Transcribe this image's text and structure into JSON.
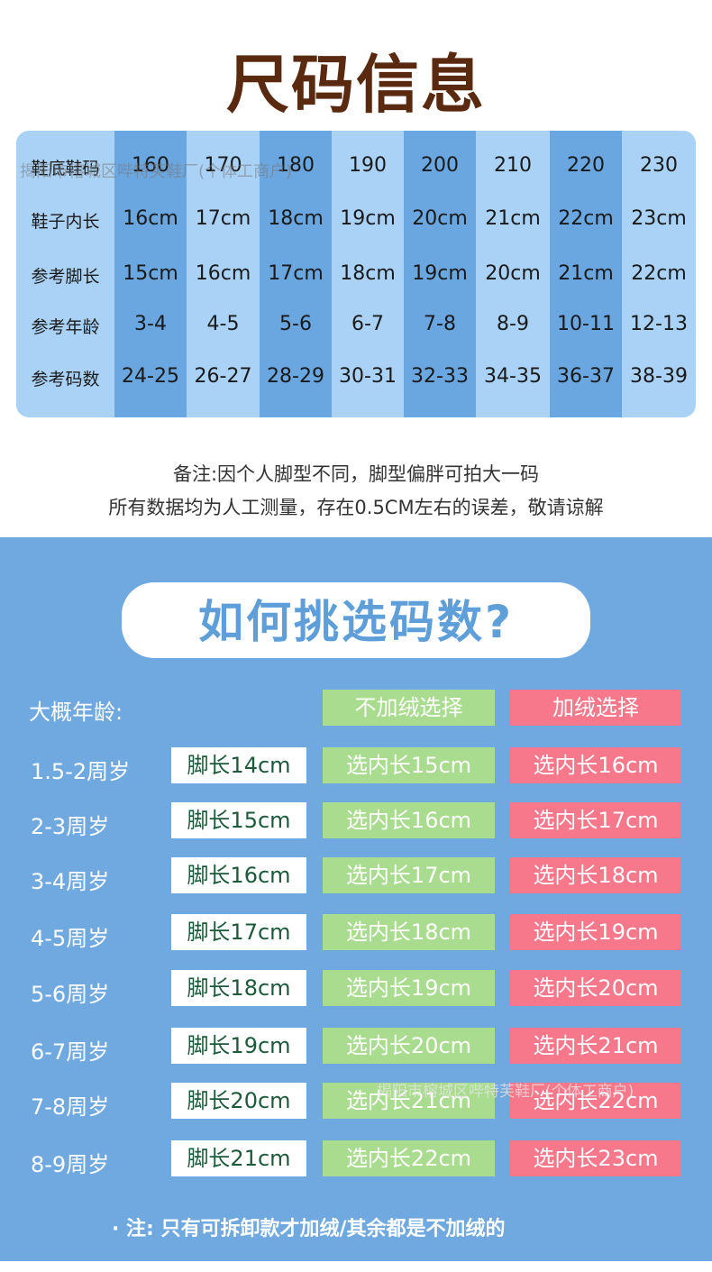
{
  "title": "尺码信息",
  "table": {
    "row_labels": [
      "鞋底鞋码",
      "鞋子内长",
      "参考脚长",
      "参考年龄",
      "参考码数"
    ],
    "columns": [
      [
        "160",
        "16cm",
        "15cm",
        "3-4",
        "24-25"
      ],
      [
        "170",
        "17cm",
        "16cm",
        "4-5",
        "26-27"
      ],
      [
        "180",
        "18cm",
        "17cm",
        "5-6",
        "28-29"
      ],
      [
        "190",
        "19cm",
        "18cm",
        "6-7",
        "30-31"
      ],
      [
        "200",
        "20cm",
        "19cm",
        "7-8",
        "32-33"
      ],
      [
        "210",
        "21cm",
        "20cm",
        "8-9",
        "34-35"
      ],
      [
        "220",
        "22cm",
        "21cm",
        "10-11",
        "36-37"
      ],
      [
        "230",
        "23cm",
        "22cm",
        "12-13",
        "38-39"
      ]
    ]
  },
  "watermark": "揭阳市榕城区哔特芙鞋厂(个体工商户)",
  "notes": [
    "备注:因个人脚型不同，脚型偏胖可拍大一码",
    "所有数据均为人工测量，存在0.5CM左右的误差，敬请谅解"
  ],
  "guide": {
    "title": "如何挑选码数?",
    "age_header": "大概年龄:",
    "col_no_fleece": "不加绒选择",
    "col_fleece": "加绒选择",
    "rows": [
      {
        "age": "1.5-2周岁",
        "foot": "脚长14cm",
        "no_fleece": "选内长15cm",
        "fleece": "选内长16cm"
      },
      {
        "age": "2-3周岁",
        "foot": "脚长15cm",
        "no_fleece": "选内长16cm",
        "fleece": "选内长17cm"
      },
      {
        "age": "3-4周岁",
        "foot": "脚长16cm",
        "no_fleece": "选内长17cm",
        "fleece": "选内长18cm"
      },
      {
        "age": "4-5周岁",
        "foot": "脚长17cm",
        "no_fleece": "选内长18cm",
        "fleece": "选内长19cm"
      },
      {
        "age": "5-6周岁",
        "foot": "脚长18cm",
        "no_fleece": "选内长19cm",
        "fleece": "选内长20cm"
      },
      {
        "age": "6-7周岁",
        "foot": "脚长19cm",
        "no_fleece": "选内长20cm",
        "fleece": "选内长21cm"
      },
      {
        "age": "7-8周岁",
        "foot": "脚长20cm",
        "no_fleece": "选内长21cm",
        "fleece": "选内长22cm"
      },
      {
        "age": "8-9周岁",
        "foot": "脚长21cm",
        "no_fleece": "选内长22cm",
        "fleece": "选内长23cm"
      }
    ],
    "footnote": "· 注:  只有可拆卸款才加绒/其余都是不加绒的"
  }
}
